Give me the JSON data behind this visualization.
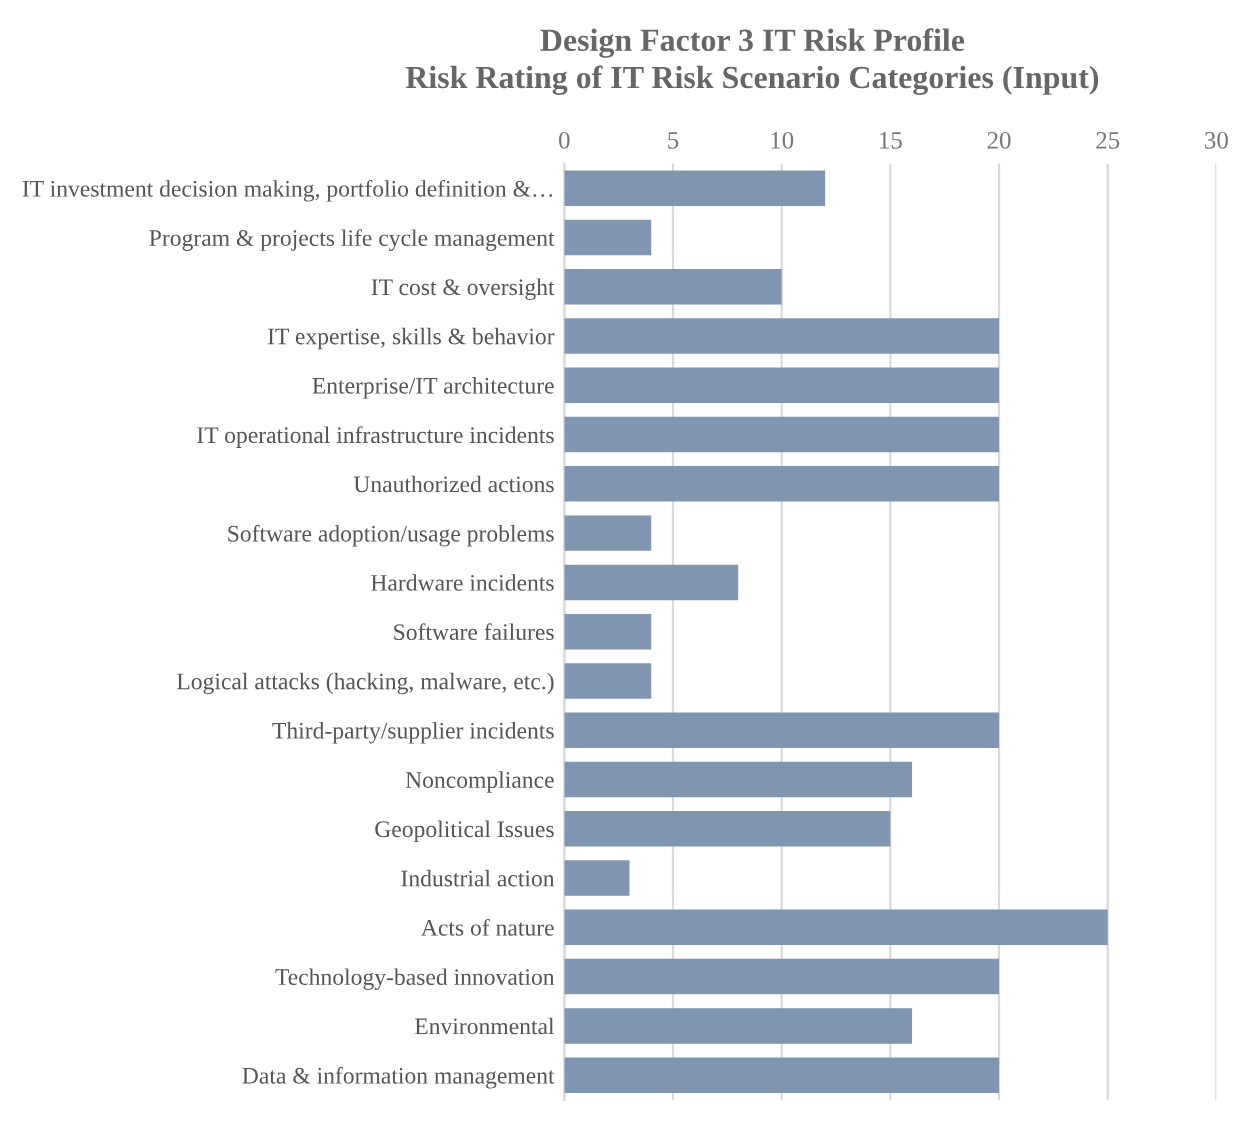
{
  "chart_data": {
    "type": "bar",
    "orientation": "horizontal",
    "title": "Design Factor 3 IT Risk Profile",
    "subtitle": "Risk Rating of IT Risk Scenario Categories (Input)",
    "categories": [
      "IT investment decision making, portfolio definition &…",
      "Program & projects life cycle management",
      "IT cost & oversight",
      "IT expertise, skills & behavior",
      "Enterprise/IT architecture",
      "IT operational infrastructure incidents",
      "Unauthorized actions",
      "Software adoption/usage problems",
      "Hardware incidents",
      "Software failures",
      "Logical attacks (hacking, malware, etc.)",
      "Third-party/supplier incidents",
      "Noncompliance",
      "Geopolitical Issues",
      "Industrial action",
      "Acts of nature",
      "Technology-based innovation",
      "Environmental",
      "Data & information management"
    ],
    "values": [
      12,
      4,
      10,
      20,
      20,
      20,
      20,
      4,
      8,
      4,
      4,
      20,
      16,
      15,
      3,
      25,
      20,
      16,
      20
    ],
    "color": "#8096b0",
    "xlim": [
      0,
      30
    ],
    "xticks": [
      0,
      5,
      10,
      15,
      20,
      25,
      30
    ],
    "grid": "x",
    "legend": false
  }
}
